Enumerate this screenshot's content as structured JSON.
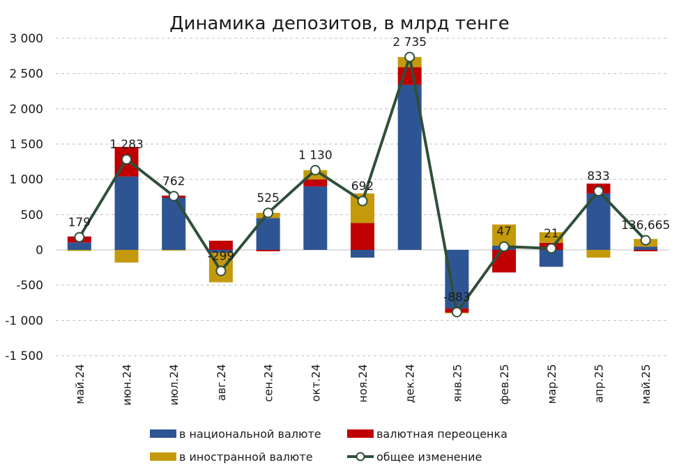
{
  "chart_data": {
    "type": "bar",
    "stacked": true,
    "title": "Динамика депозитов, в млрд тенге",
    "categories": [
      "май.24",
      "июн.24",
      "июл.24",
      "авг.24",
      "сен.24",
      "окт.24",
      "ноя.24",
      "дек.24",
      "янв.25",
      "фев.25",
      "мар.25",
      "апр.25",
      "май.25"
    ],
    "ylim": [
      -1500,
      3000
    ],
    "yticks": [
      3000,
      2500,
      2000,
      1500,
      1000,
      500,
      0,
      -500,
      -1000,
      -1500
    ],
    "ytick_labels": [
      "3 000",
      "2 500",
      "2 000",
      "1 500",
      "1 000",
      "500",
      "0",
      "-500",
      "-1 000",
      "-1 500"
    ],
    "grid": true,
    "legend_position": "bottom",
    "series": [
      {
        "name": "в национальной валюте",
        "kind": "bar",
        "color": "#2E5593",
        "values": [
          105,
          1040,
          740,
          -40,
          450,
          900,
          -110,
          2340,
          -830,
          60,
          -240,
          800,
          45
        ]
      },
      {
        "name": "валютная переоценка",
        "kind": "bar",
        "color": "#C00000",
        "values": [
          85,
          420,
          30,
          130,
          -20,
          100,
          380,
          250,
          -60,
          -320,
          100,
          140,
          -20
        ]
      },
      {
        "name": "в иностранной валюте",
        "kind": "bar",
        "color": "#C49A0C",
        "values": [
          -15,
          -180,
          -10,
          -420,
          75,
          130,
          420,
          145,
          -10,
          300,
          150,
          -110,
          110
        ]
      },
      {
        "name": "общее изменение",
        "kind": "line",
        "color": "#2F4F3A",
        "values": [
          179,
          1283,
          762,
          -299,
          525,
          1130,
          692,
          2735,
          -883,
          47,
          21,
          833,
          136.665
        ],
        "labels": [
          "179",
          "1 283",
          "762",
          "-299",
          "525",
          "1 130",
          "692",
          "2 735",
          "-883",
          "47",
          "21",
          "833",
          "136,665"
        ]
      }
    ]
  }
}
